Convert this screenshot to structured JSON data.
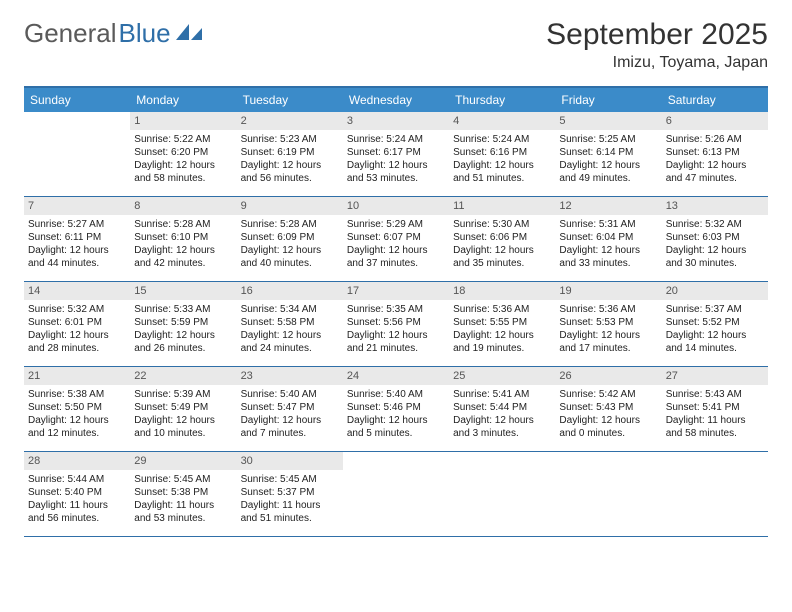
{
  "logo": {
    "text_gray": "General",
    "text_blue": "Blue"
  },
  "title": "September 2025",
  "location": "Imizu, Toyama, Japan",
  "colors": {
    "header_bg": "#3b8bc9",
    "header_border": "#2f6fa8",
    "daynum_bg": "#e9e9e9",
    "text": "#333333"
  },
  "day_names": [
    "Sunday",
    "Monday",
    "Tuesday",
    "Wednesday",
    "Thursday",
    "Friday",
    "Saturday"
  ],
  "weeks": [
    [
      {
        "n": "",
        "l1": "",
        "l2": "",
        "l3": "",
        "l4": ""
      },
      {
        "n": "1",
        "l1": "Sunrise: 5:22 AM",
        "l2": "Sunset: 6:20 PM",
        "l3": "Daylight: 12 hours",
        "l4": "and 58 minutes."
      },
      {
        "n": "2",
        "l1": "Sunrise: 5:23 AM",
        "l2": "Sunset: 6:19 PM",
        "l3": "Daylight: 12 hours",
        "l4": "and 56 minutes."
      },
      {
        "n": "3",
        "l1": "Sunrise: 5:24 AM",
        "l2": "Sunset: 6:17 PM",
        "l3": "Daylight: 12 hours",
        "l4": "and 53 minutes."
      },
      {
        "n": "4",
        "l1": "Sunrise: 5:24 AM",
        "l2": "Sunset: 6:16 PM",
        "l3": "Daylight: 12 hours",
        "l4": "and 51 minutes."
      },
      {
        "n": "5",
        "l1": "Sunrise: 5:25 AM",
        "l2": "Sunset: 6:14 PM",
        "l3": "Daylight: 12 hours",
        "l4": "and 49 minutes."
      },
      {
        "n": "6",
        "l1": "Sunrise: 5:26 AM",
        "l2": "Sunset: 6:13 PM",
        "l3": "Daylight: 12 hours",
        "l4": "and 47 minutes."
      }
    ],
    [
      {
        "n": "7",
        "l1": "Sunrise: 5:27 AM",
        "l2": "Sunset: 6:11 PM",
        "l3": "Daylight: 12 hours",
        "l4": "and 44 minutes."
      },
      {
        "n": "8",
        "l1": "Sunrise: 5:28 AM",
        "l2": "Sunset: 6:10 PM",
        "l3": "Daylight: 12 hours",
        "l4": "and 42 minutes."
      },
      {
        "n": "9",
        "l1": "Sunrise: 5:28 AM",
        "l2": "Sunset: 6:09 PM",
        "l3": "Daylight: 12 hours",
        "l4": "and 40 minutes."
      },
      {
        "n": "10",
        "l1": "Sunrise: 5:29 AM",
        "l2": "Sunset: 6:07 PM",
        "l3": "Daylight: 12 hours",
        "l4": "and 37 minutes."
      },
      {
        "n": "11",
        "l1": "Sunrise: 5:30 AM",
        "l2": "Sunset: 6:06 PM",
        "l3": "Daylight: 12 hours",
        "l4": "and 35 minutes."
      },
      {
        "n": "12",
        "l1": "Sunrise: 5:31 AM",
        "l2": "Sunset: 6:04 PM",
        "l3": "Daylight: 12 hours",
        "l4": "and 33 minutes."
      },
      {
        "n": "13",
        "l1": "Sunrise: 5:32 AM",
        "l2": "Sunset: 6:03 PM",
        "l3": "Daylight: 12 hours",
        "l4": "and 30 minutes."
      }
    ],
    [
      {
        "n": "14",
        "l1": "Sunrise: 5:32 AM",
        "l2": "Sunset: 6:01 PM",
        "l3": "Daylight: 12 hours",
        "l4": "and 28 minutes."
      },
      {
        "n": "15",
        "l1": "Sunrise: 5:33 AM",
        "l2": "Sunset: 5:59 PM",
        "l3": "Daylight: 12 hours",
        "l4": "and 26 minutes."
      },
      {
        "n": "16",
        "l1": "Sunrise: 5:34 AM",
        "l2": "Sunset: 5:58 PM",
        "l3": "Daylight: 12 hours",
        "l4": "and 24 minutes."
      },
      {
        "n": "17",
        "l1": "Sunrise: 5:35 AM",
        "l2": "Sunset: 5:56 PM",
        "l3": "Daylight: 12 hours",
        "l4": "and 21 minutes."
      },
      {
        "n": "18",
        "l1": "Sunrise: 5:36 AM",
        "l2": "Sunset: 5:55 PM",
        "l3": "Daylight: 12 hours",
        "l4": "and 19 minutes."
      },
      {
        "n": "19",
        "l1": "Sunrise: 5:36 AM",
        "l2": "Sunset: 5:53 PM",
        "l3": "Daylight: 12 hours",
        "l4": "and 17 minutes."
      },
      {
        "n": "20",
        "l1": "Sunrise: 5:37 AM",
        "l2": "Sunset: 5:52 PM",
        "l3": "Daylight: 12 hours",
        "l4": "and 14 minutes."
      }
    ],
    [
      {
        "n": "21",
        "l1": "Sunrise: 5:38 AM",
        "l2": "Sunset: 5:50 PM",
        "l3": "Daylight: 12 hours",
        "l4": "and 12 minutes."
      },
      {
        "n": "22",
        "l1": "Sunrise: 5:39 AM",
        "l2": "Sunset: 5:49 PM",
        "l3": "Daylight: 12 hours",
        "l4": "and 10 minutes."
      },
      {
        "n": "23",
        "l1": "Sunrise: 5:40 AM",
        "l2": "Sunset: 5:47 PM",
        "l3": "Daylight: 12 hours",
        "l4": "and 7 minutes."
      },
      {
        "n": "24",
        "l1": "Sunrise: 5:40 AM",
        "l2": "Sunset: 5:46 PM",
        "l3": "Daylight: 12 hours",
        "l4": "and 5 minutes."
      },
      {
        "n": "25",
        "l1": "Sunrise: 5:41 AM",
        "l2": "Sunset: 5:44 PM",
        "l3": "Daylight: 12 hours",
        "l4": "and 3 minutes."
      },
      {
        "n": "26",
        "l1": "Sunrise: 5:42 AM",
        "l2": "Sunset: 5:43 PM",
        "l3": "Daylight: 12 hours",
        "l4": "and 0 minutes."
      },
      {
        "n": "27",
        "l1": "Sunrise: 5:43 AM",
        "l2": "Sunset: 5:41 PM",
        "l3": "Daylight: 11 hours",
        "l4": "and 58 minutes."
      }
    ],
    [
      {
        "n": "28",
        "l1": "Sunrise: 5:44 AM",
        "l2": "Sunset: 5:40 PM",
        "l3": "Daylight: 11 hours",
        "l4": "and 56 minutes."
      },
      {
        "n": "29",
        "l1": "Sunrise: 5:45 AM",
        "l2": "Sunset: 5:38 PM",
        "l3": "Daylight: 11 hours",
        "l4": "and 53 minutes."
      },
      {
        "n": "30",
        "l1": "Sunrise: 5:45 AM",
        "l2": "Sunset: 5:37 PM",
        "l3": "Daylight: 11 hours",
        "l4": "and 51 minutes."
      },
      {
        "n": "",
        "l1": "",
        "l2": "",
        "l3": "",
        "l4": ""
      },
      {
        "n": "",
        "l1": "",
        "l2": "",
        "l3": "",
        "l4": ""
      },
      {
        "n": "",
        "l1": "",
        "l2": "",
        "l3": "",
        "l4": ""
      },
      {
        "n": "",
        "l1": "",
        "l2": "",
        "l3": "",
        "l4": ""
      }
    ]
  ]
}
